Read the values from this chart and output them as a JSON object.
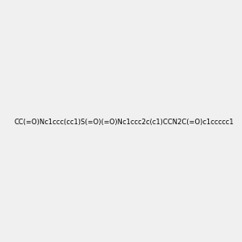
{
  "smiles": "CC(=O)Nc1ccc(cc1)S(=O)(=O)Nc1ccc2c(c1)CCN2C(=O)c1ccccc1",
  "image_size": 300,
  "background_color": "#f0f0f0"
}
